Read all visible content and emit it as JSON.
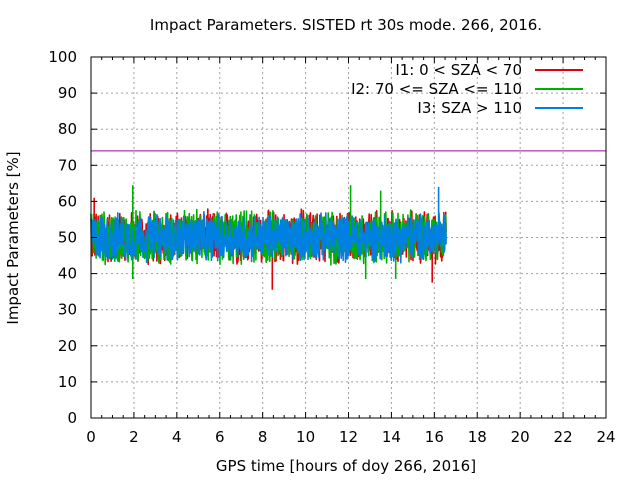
{
  "chart_data": {
    "type": "line",
    "title": "Impact Parameters. SISTED rt 30s mode. 266, 2016.",
    "xlabel": "GPS time [hours of doy 266, 2016]",
    "ylabel": "Impact Parameters [%]",
    "xlim": [
      0,
      24
    ],
    "ylim": [
      0,
      100
    ],
    "xticks": [
      0,
      2,
      4,
      6,
      8,
      10,
      12,
      14,
      16,
      18,
      20,
      22,
      24
    ],
    "yticks": [
      0,
      10,
      20,
      30,
      40,
      50,
      60,
      70,
      80,
      90,
      100
    ],
    "grid": true,
    "legend_position": "top-right",
    "data_x_range": [
      0,
      16.55
    ],
    "series": [
      {
        "name": "I1: 0 < SZA < 70",
        "color": "#e0000a",
        "center": 50,
        "min": 35.5,
        "max": 61,
        "spike_x": [
          8.45,
          15.9,
          0.15,
          9.8,
          16.5
        ],
        "spike_y": [
          35.5,
          37.5,
          61,
          58,
          55
        ]
      },
      {
        "name": "I2: 70 <= SZA <= 110",
        "color": "#00b000",
        "center": 50,
        "min": 38.5,
        "max": 64.5,
        "spike_x": [
          1.95,
          12.1,
          13.5,
          14.2,
          1.95,
          12.8
        ],
        "spike_y": [
          64.5,
          64.5,
          63,
          38.5,
          38.5,
          38.5
        ]
      },
      {
        "name": "I3: SZA > 110",
        "color": "#0080e0",
        "center": 50,
        "min": 41,
        "max": 64,
        "spike_x": [
          16.2
        ],
        "spike_y": [
          64
        ]
      }
    ],
    "reference_line": {
      "y": 74,
      "color": "#a000a0"
    }
  }
}
